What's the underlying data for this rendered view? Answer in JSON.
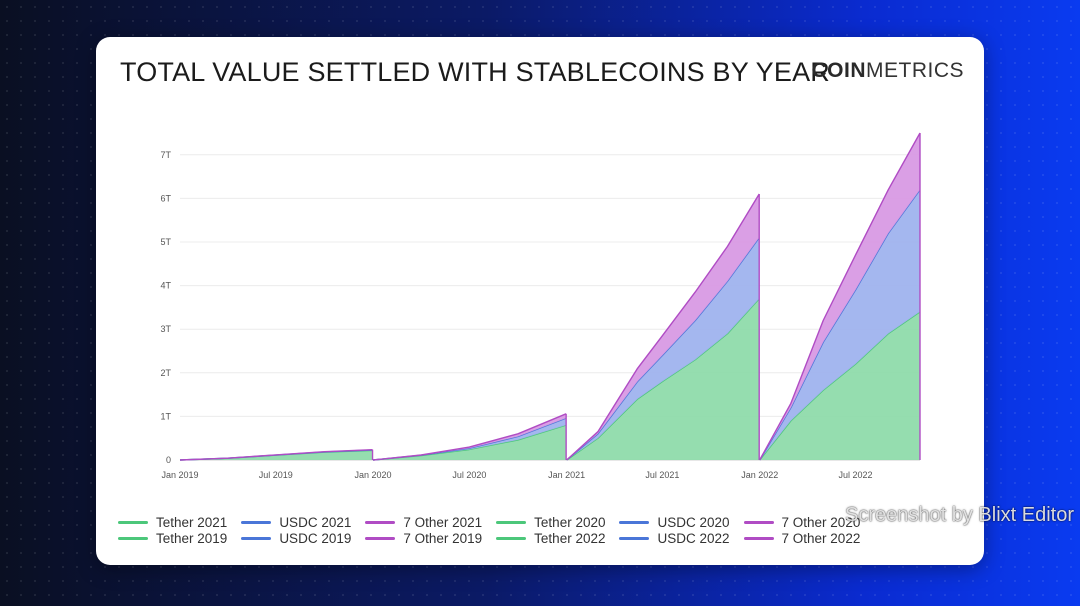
{
  "header": {
    "title": "TOTAL VALUE SETTLED WITH STABLECOINS BY YEAR",
    "brand_bold": "COIN",
    "brand_light": "METRICS"
  },
  "watermark": "Screenshot by Blixt Editor",
  "colors": {
    "tether": "#4cc77a",
    "usdc": "#4a76d8",
    "other": "#b04cc4",
    "tether_fill": "#8fdbab",
    "usdc_fill": "#9fb3ee",
    "other_fill": "#d89ae4"
  },
  "chart_data": {
    "type": "area",
    "title": "TOTAL VALUE SETTLED WITH STABLECOINS BY YEAR",
    "xlabel": "",
    "ylabel": "",
    "ylim": [
      0,
      7500000000000
    ],
    "y_ticks": [
      0,
      1000000000000,
      2000000000000,
      3000000000000,
      4000000000000,
      5000000000000,
      6000000000000,
      7000000000000
    ],
    "y_tick_labels": [
      "0",
      "1T",
      "2T",
      "3T",
      "4T",
      "5T",
      "6T",
      "7T"
    ],
    "x_ticks": [
      "2019-01-01",
      "2019-07-01",
      "2020-01-01",
      "2020-07-01",
      "2021-01-01",
      "2021-07-01",
      "2022-01-01",
      "2022-07-01"
    ],
    "x_tick_labels": [
      "Jan 2019",
      "Jul 2019",
      "Jan 2020",
      "Jul 2020",
      "Jan 2021",
      "Jul 2021",
      "Jan 2022",
      "Jul 2022"
    ],
    "stacked": true,
    "grid": true,
    "legend": "bottom",
    "periods": [
      {
        "year": "2019",
        "x": [
          "2019-01-01",
          "2019-04-01",
          "2019-07-01",
          "2019-10-01",
          "2019-12-31"
        ],
        "series": [
          {
            "name": "Tether 2019",
            "group": "tether",
            "values": [
              0,
              40000000000,
              110000000000,
              180000000000,
              220000000000
            ]
          },
          {
            "name": "USDC 2019",
            "group": "usdc",
            "values": [
              0,
              1000000000,
              3000000000,
              6000000000,
              9000000000
            ]
          },
          {
            "name": "7 Other 2019",
            "group": "other",
            "values": [
              0,
              1000000000,
              3000000000,
              5000000000,
              8000000000
            ]
          }
        ]
      },
      {
        "year": "2020",
        "x": [
          "2020-01-01",
          "2020-04-01",
          "2020-07-01",
          "2020-10-01",
          "2020-12-31"
        ],
        "series": [
          {
            "name": "Tether 2020",
            "group": "tether",
            "values": [
              0,
              100000000000,
              240000000000,
              460000000000,
              800000000000
            ]
          },
          {
            "name": "USDC 2020",
            "group": "usdc",
            "values": [
              0,
              10000000000,
              30000000000,
              80000000000,
              160000000000
            ]
          },
          {
            "name": "7 Other 2020",
            "group": "other",
            "values": [
              0,
              5000000000,
              25000000000,
              60000000000,
              100000000000
            ]
          }
        ]
      },
      {
        "year": "2021",
        "x": [
          "2021-01-01",
          "2021-03-01",
          "2021-05-15",
          "2021-07-01",
          "2021-09-01",
          "2021-11-01",
          "2021-12-31"
        ],
        "series": [
          {
            "name": "Tether 2021",
            "group": "tether",
            "values": [
              0,
              500000000000,
              1400000000000,
              1800000000000,
              2300000000000,
              2900000000000,
              3700000000000
            ]
          },
          {
            "name": "USDC 2021",
            "group": "usdc",
            "values": [
              0,
              100000000000,
              400000000000,
              600000000000,
              900000000000,
              1200000000000,
              1400000000000
            ]
          },
          {
            "name": "7 Other 2021",
            "group": "other",
            "values": [
              0,
              50000000000,
              300000000000,
              450000000000,
              650000000000,
              800000000000,
              1000000000000
            ]
          }
        ]
      },
      {
        "year": "2022",
        "x": [
          "2022-01-01",
          "2022-03-01",
          "2022-05-01",
          "2022-07-01",
          "2022-09-01",
          "2022-10-31"
        ],
        "series": [
          {
            "name": "Tether 2022",
            "group": "tether",
            "values": [
              0,
              900000000000,
              1600000000000,
              2200000000000,
              2900000000000,
              3400000000000
            ]
          },
          {
            "name": "USDC 2022",
            "group": "usdc",
            "values": [
              0,
              300000000000,
              1100000000000,
              1700000000000,
              2300000000000,
              2800000000000
            ]
          },
          {
            "name": "7 Other 2022",
            "group": "other",
            "values": [
              0,
              100000000000,
              500000000000,
              800000000000,
              1000000000000,
              1300000000000
            ]
          }
        ]
      }
    ]
  },
  "legend": [
    {
      "label": "Tether 2021",
      "group": "tether"
    },
    {
      "label": "USDC 2021",
      "group": "usdc"
    },
    {
      "label": "7 Other 2021",
      "group": "other"
    },
    {
      "label": "Tether 2020",
      "group": "tether"
    },
    {
      "label": "USDC 2020",
      "group": "usdc"
    },
    {
      "label": "7 Other 2020",
      "group": "other"
    },
    {
      "label": "Tether 2019",
      "group": "tether"
    },
    {
      "label": "USDC 2019",
      "group": "usdc"
    },
    {
      "label": "7 Other 2019",
      "group": "other"
    },
    {
      "label": "Tether 2022",
      "group": "tether"
    },
    {
      "label": "USDC 2022",
      "group": "usdc"
    },
    {
      "label": "7 Other 2022",
      "group": "other"
    }
  ]
}
